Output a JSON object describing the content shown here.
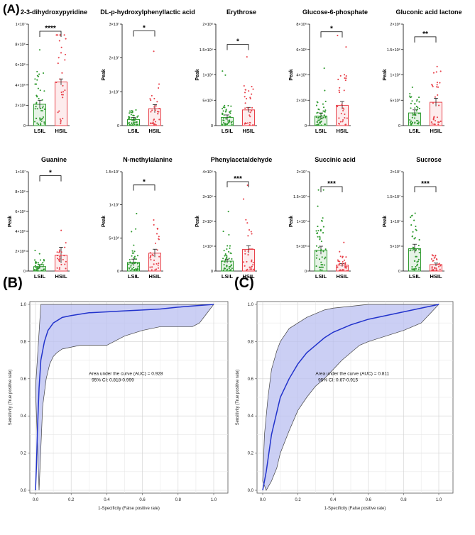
{
  "panels": {
    "a": "(A)",
    "b": "(B)",
    "c": "(C)"
  },
  "colors": {
    "lsil": "#2e9a2e",
    "hsil": "#e8424b",
    "roc_line": "#2233cc",
    "roc_band": "#b9bff0",
    "roc_band_edge": "#444444"
  },
  "chart_data": [
    {
      "type": "bar",
      "title": "2-3-dihydroxypyridine",
      "categories": [
        "LSIL",
        "HSIL"
      ],
      "values": [
        2100000.0,
        4300000.0
      ],
      "errors": [
        400000.0,
        300000.0
      ],
      "ylim": [
        0,
        10000000.0
      ],
      "yticks": [
        "0",
        "2×10⁶",
        "4×10⁶",
        "6×10⁶",
        "8×10⁶",
        "1×10⁷"
      ],
      "ylabel": "",
      "significance": "****",
      "sig_height": 9300000.0,
      "n": [
        45,
        30
      ]
    },
    {
      "type": "bar",
      "title": "DL-p-hydroxylphenyllactic acid",
      "categories": [
        "LSIL",
        "HSIL"
      ],
      "values": [
        1800000.0,
        5000000.0
      ],
      "errors": [
        600000.0,
        1200000.0
      ],
      "ylim": [
        0,
        30000000.0
      ],
      "yticks": [
        "0",
        "1×10⁷",
        "2×10⁷",
        "3×10⁷"
      ],
      "ylabel": "Peak",
      "significance": "*",
      "sig_height": 28000000.0,
      "n": [
        45,
        30
      ]
    },
    {
      "type": "bar",
      "title": "Erythrose",
      "categories": [
        "LSIL",
        "HSIL"
      ],
      "values": [
        160000.0,
        310000.0
      ],
      "errors": [
        50000.0,
        50000.0
      ],
      "ylim": [
        0,
        2000000.0
      ],
      "yticks": [
        "0",
        "5×10⁵",
        "1×10⁶",
        "1.5×10⁶",
        "2×10⁶"
      ],
      "ylabel": "Peak",
      "significance": "*",
      "sig_height": 1600000.0,
      "n": [
        45,
        30
      ]
    },
    {
      "type": "bar",
      "title": "Glucose-6-phosphate",
      "categories": [
        "LSIL",
        "HSIL"
      ],
      "values": [
        750000.0,
        1600000.0
      ],
      "errors": [
        250000.0,
        300000.0
      ],
      "ylim": [
        0,
        8000000.0
      ],
      "yticks": [
        "0",
        "2×10⁶",
        "4×10⁶",
        "6×10⁶",
        "8×10⁶"
      ],
      "ylabel": "Peak",
      "significance": "*",
      "sig_height": 7400000.0,
      "n": [
        45,
        30
      ]
    },
    {
      "type": "bar",
      "title": "Gluconic acid lactone",
      "categories": [
        "LSIL",
        "HSIL"
      ],
      "values": [
        250000.0,
        460000.0
      ],
      "errors": [
        60000.0,
        80000.0
      ],
      "ylim": [
        0,
        2000000.0
      ],
      "yticks": [
        "0",
        "5×10⁵",
        "1×10⁶",
        "1.5×10⁶",
        "2×10⁶"
      ],
      "ylabel": "Peak",
      "significance": "**",
      "sig_height": 1750000.0,
      "n": [
        45,
        30
      ]
    },
    {
      "type": "bar",
      "title": "Guanine",
      "categories": [
        "LSIL",
        "HSIL"
      ],
      "values": [
        450000.0,
        1600000.0
      ],
      "errors": [
        200000.0,
        800000.0
      ],
      "ylim": [
        0,
        10000000.0
      ],
      "yticks": [
        "0",
        "2×10⁶",
        "4×10⁶",
        "6×10⁶",
        "8×10⁶",
        "1×10⁷"
      ],
      "ylabel": "Peak",
      "significance": "*",
      "sig_height": 9600000.0,
      "n": [
        40,
        25
      ]
    },
    {
      "type": "bar",
      "title": "N-methylalanine",
      "categories": [
        "LSIL",
        "HSIL"
      ],
      "values": [
        1300000.0,
        2700000.0
      ],
      "errors": [
        500000.0,
        600000.0
      ],
      "ylim": [
        0,
        15000000.0
      ],
      "yticks": [
        "0",
        "5×10⁶",
        "1×10⁷",
        "1.5×10⁷"
      ],
      "ylabel": "Peak",
      "significance": "*",
      "sig_height": 13000000.0,
      "n": [
        45,
        30
      ]
    },
    {
      "type": "bar",
      "title": "Phenylacetaldehyde",
      "categories": [
        "LSIL",
        "HSIL"
      ],
      "values": [
        40000.0,
        87000.0
      ],
      "errors": [
        8000.0,
        15000.0
      ],
      "ylim": [
        0,
        400000.0
      ],
      "yticks": [
        "0",
        "1×10⁵",
        "2×10⁵",
        "3×10⁵",
        "4×10⁵"
      ],
      "ylabel": "Peak",
      "significance": "***",
      "sig_height": 360000.0,
      "n": [
        45,
        30
      ]
    },
    {
      "type": "bar",
      "title": "Succinic acid",
      "categories": [
        "LSIL",
        "HSIL"
      ],
      "values": [
        4200000.0,
        1200000.0
      ],
      "errors": [
        800000.0,
        300000.0
      ],
      "ylim": [
        0,
        20000000.0
      ],
      "yticks": [
        "0",
        "5×10⁶",
        "1×10⁷",
        "1.5×10⁷",
        "2×10⁷"
      ],
      "ylabel": "Peak",
      "significance": "***",
      "sig_height": 17000000.0,
      "n": [
        45,
        30
      ]
    },
    {
      "type": "bar",
      "title": "Sucrose",
      "categories": [
        "LSIL",
        "HSIL"
      ],
      "values": [
        4500000.0,
        1300000.0
      ],
      "errors": [
        900000.0,
        300000.0
      ],
      "ylim": [
        0,
        20000000.0
      ],
      "yticks": [
        "0",
        "5×10⁶",
        "1×10⁷",
        "1.5×10⁷",
        "2×10⁷"
      ],
      "ylabel": "Peak",
      "significance": "***",
      "sig_height": 17000000.0,
      "n": [
        45,
        30
      ]
    },
    {
      "type": "line",
      "title": "",
      "xlabel": "1-Specificity (False positive rate)",
      "ylabel": "Sensitivity (True positive rate)",
      "xlim": [
        0,
        1
      ],
      "ylim": [
        0,
        1
      ],
      "xticks": [
        "0.0",
        "0.2",
        "0.4",
        "0.6",
        "0.8",
        "1.0"
      ],
      "yticks": [
        "0.0",
        "0.2",
        "0.4",
        "0.6",
        "0.8",
        "1.0"
      ],
      "auc_text": "Area under the curve (AUC) = 0.928",
      "ci_text": "95% CI: 0.818-0.999",
      "series": [
        {
          "name": "roc",
          "x": [
            0,
            0.005,
            0.01,
            0.02,
            0.03,
            0.05,
            0.07,
            0.1,
            0.15,
            0.2,
            0.3,
            0.4,
            0.5,
            0.6,
            0.7,
            0.8,
            0.9,
            1.0
          ],
          "y": [
            0,
            0.12,
            0.3,
            0.55,
            0.7,
            0.8,
            0.86,
            0.9,
            0.93,
            0.94,
            0.955,
            0.96,
            0.965,
            0.97,
            0.975,
            0.985,
            0.993,
            1.0
          ]
        },
        {
          "name": "ci_upper",
          "x": [
            0,
            0.03,
            0.05,
            0.5,
            1.0
          ],
          "y": [
            0.55,
            1.0,
            1.0,
            1.0,
            1.0
          ]
        },
        {
          "name": "ci_lower",
          "x": [
            0.02,
            0.04,
            0.06,
            0.08,
            0.1,
            0.12,
            0.15,
            0.2,
            0.25,
            0.3,
            0.4,
            0.5,
            0.6,
            0.7,
            0.8,
            0.85,
            0.88,
            0.92,
            0.96,
            1.0
          ],
          "y": [
            0.0,
            0.45,
            0.6,
            0.68,
            0.72,
            0.74,
            0.76,
            0.77,
            0.78,
            0.78,
            0.78,
            0.83,
            0.86,
            0.88,
            0.88,
            0.88,
            0.88,
            0.9,
            0.95,
            1.0
          ]
        }
      ]
    },
    {
      "type": "line",
      "title": "",
      "xlabel": "1-Specificity (False positive rate)",
      "ylabel": "Sensitivity (True positive rate)",
      "xlim": [
        0,
        1
      ],
      "ylim": [
        0,
        1
      ],
      "xticks": [
        "0.0",
        "0.2",
        "0.4",
        "0.6",
        "0.8",
        "1.0"
      ],
      "yticks": [
        "0.0",
        "0.2",
        "0.4",
        "0.6",
        "0.8",
        "1.0"
      ],
      "auc_text": "Area under the curve (AUC) = 0.811",
      "ci_text": "95% CI: 0.67-0.915",
      "series": [
        {
          "name": "roc",
          "x": [
            0,
            0.02,
            0.05,
            0.08,
            0.1,
            0.15,
            0.2,
            0.25,
            0.3,
            0.35,
            0.4,
            0.5,
            0.6,
            0.7,
            0.8,
            0.9,
            1.0
          ],
          "y": [
            0,
            0.1,
            0.3,
            0.42,
            0.5,
            0.6,
            0.68,
            0.74,
            0.78,
            0.82,
            0.85,
            0.89,
            0.92,
            0.94,
            0.96,
            0.98,
            1.0
          ]
        },
        {
          "name": "ci_upper",
          "x": [
            0,
            0.01,
            0.03,
            0.05,
            0.08,
            0.1,
            0.15,
            0.2,
            0.25,
            0.3,
            0.35,
            0.4,
            0.5,
            0.6,
            0.7,
            0.8,
            1.0
          ],
          "y": [
            0.05,
            0.3,
            0.5,
            0.65,
            0.75,
            0.8,
            0.87,
            0.9,
            0.93,
            0.95,
            0.97,
            0.98,
            0.99,
            1.0,
            1.0,
            1.0,
            1.0
          ]
        },
        {
          "name": "ci_lower",
          "x": [
            0.02,
            0.05,
            0.08,
            0.1,
            0.15,
            0.2,
            0.25,
            0.3,
            0.35,
            0.4,
            0.45,
            0.5,
            0.55,
            0.6,
            0.7,
            0.8,
            0.9,
            0.95,
            1.0
          ],
          "y": [
            0,
            0.05,
            0.12,
            0.2,
            0.32,
            0.43,
            0.5,
            0.56,
            0.6,
            0.65,
            0.7,
            0.74,
            0.78,
            0.8,
            0.83,
            0.86,
            0.9,
            0.95,
            1.0
          ]
        }
      ]
    }
  ]
}
